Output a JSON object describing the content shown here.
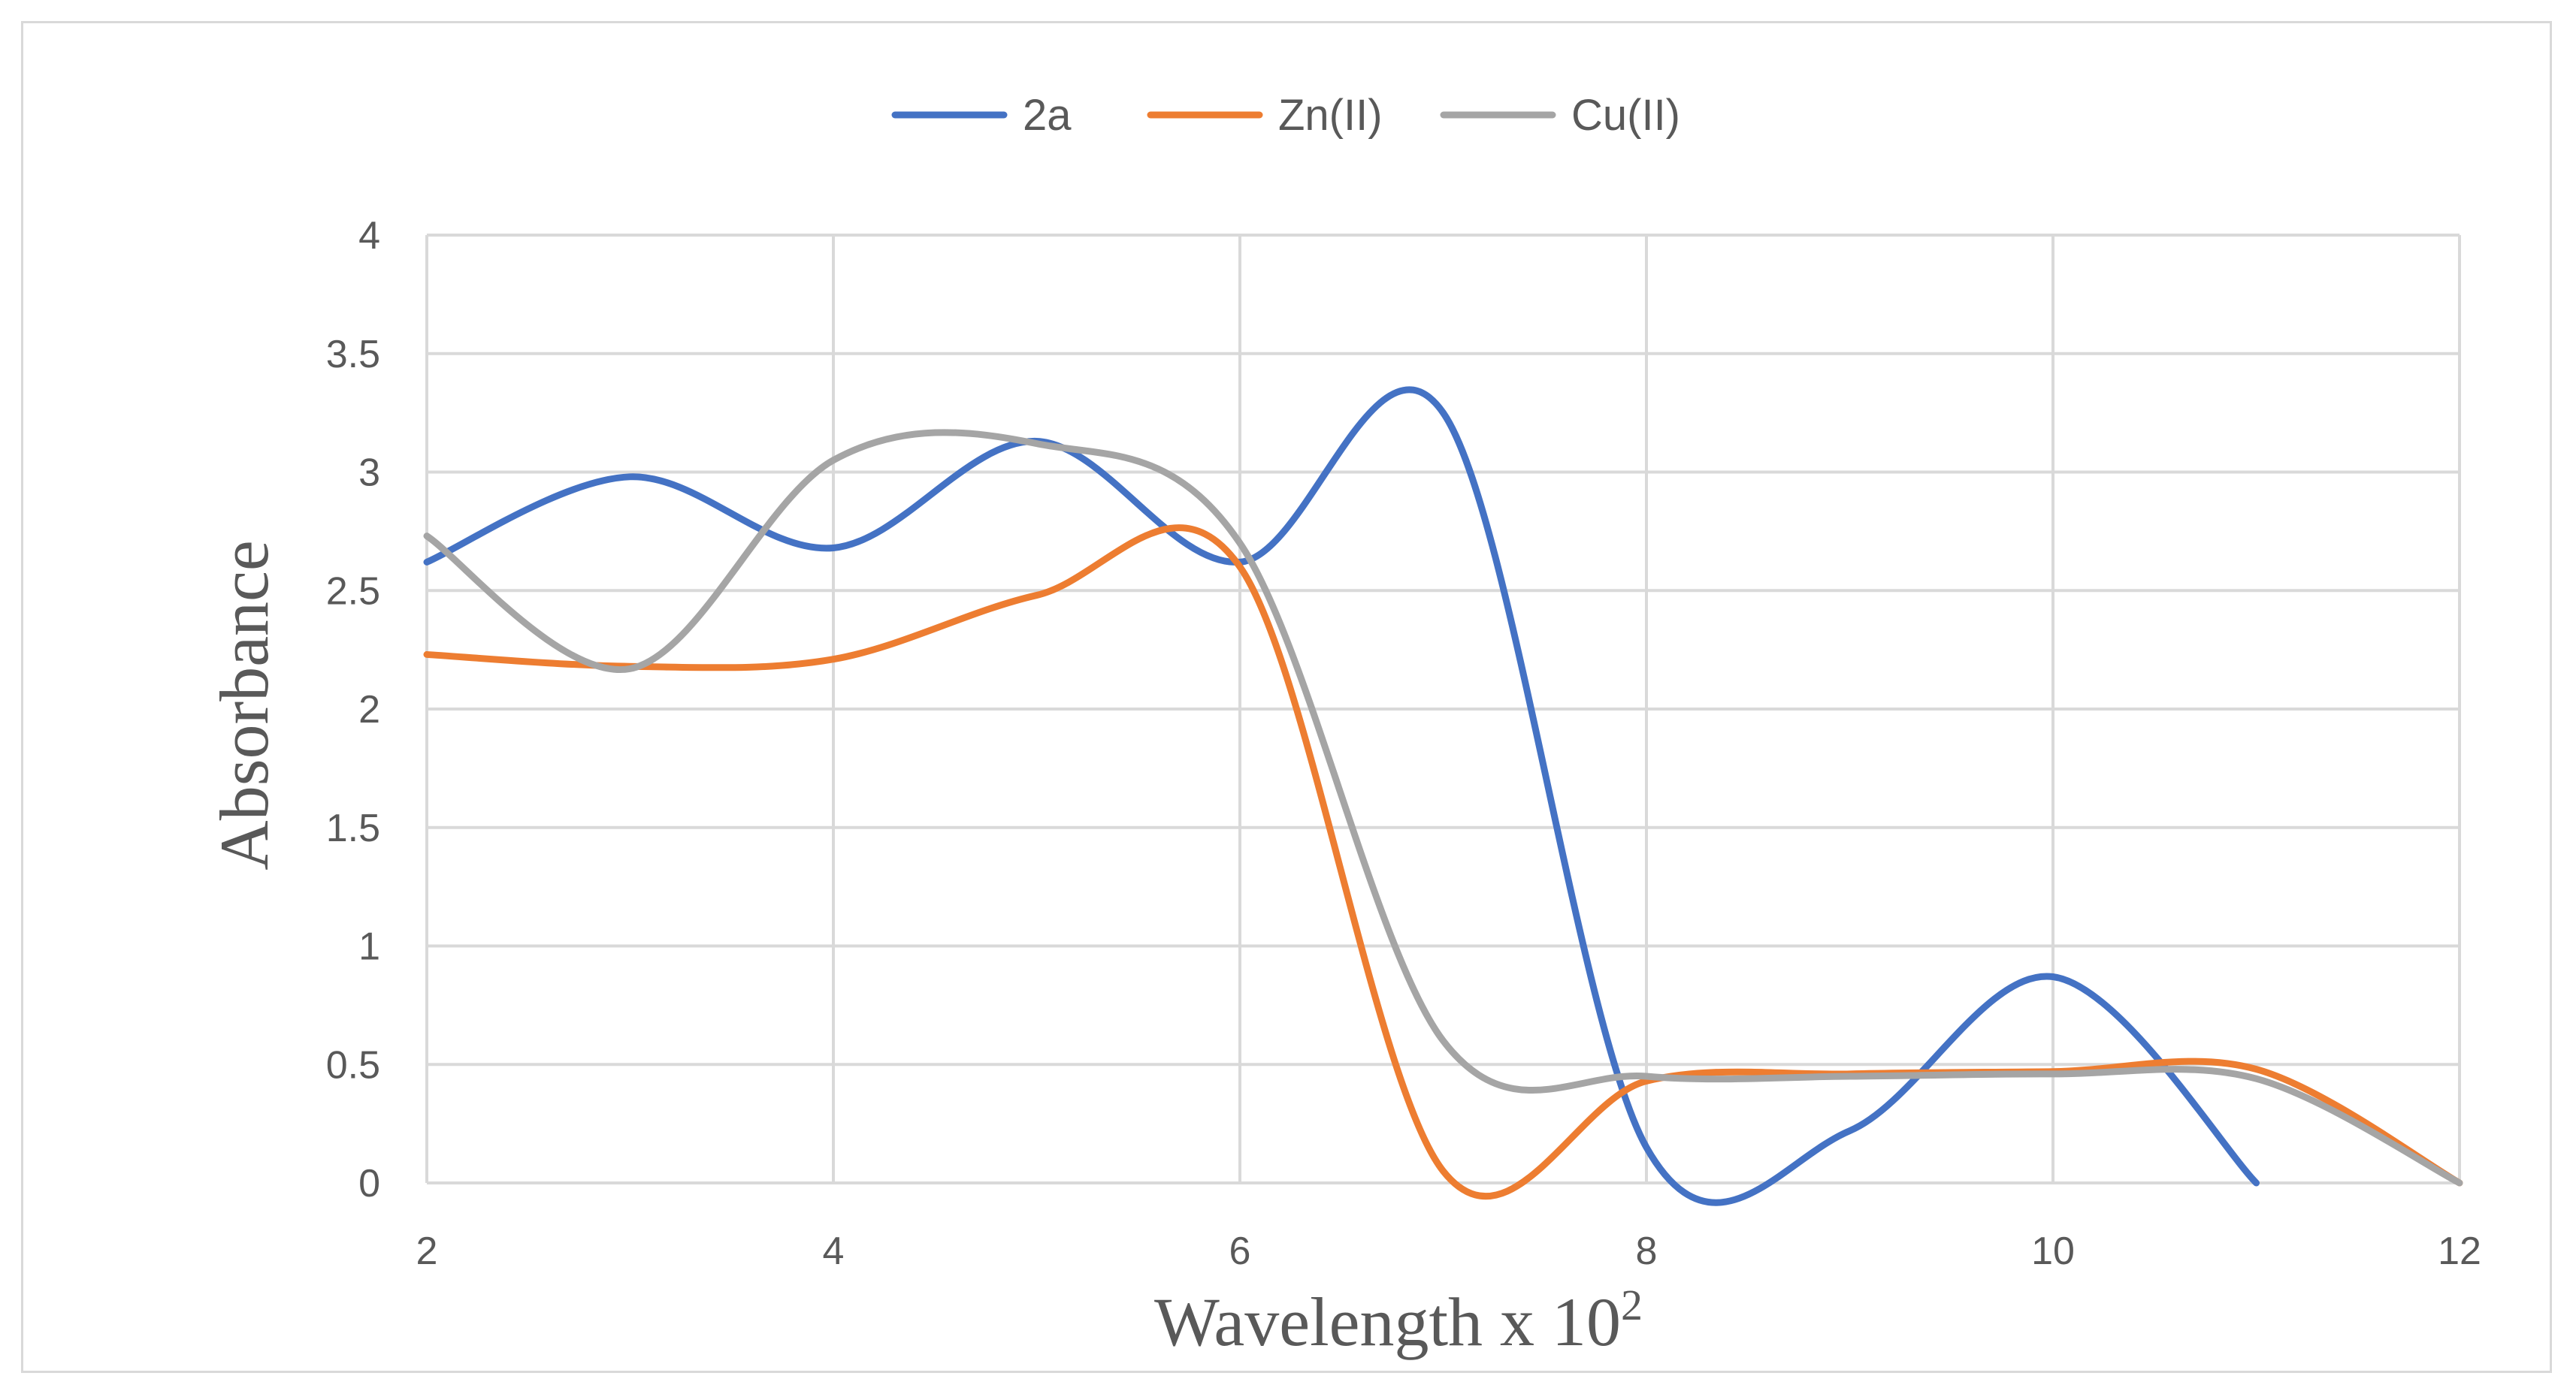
{
  "chart_data": {
    "type": "line",
    "title": "",
    "xlabel": "Wavelength x 10",
    "xlabel_superscript": "2",
    "ylabel": "Absorbance",
    "xlim": [
      2,
      12
    ],
    "ylim": [
      0,
      4
    ],
    "x_ticks": [
      2,
      4,
      6,
      8,
      10,
      12
    ],
    "x_tick_labels": [
      "2",
      "4",
      "6",
      "8",
      "10",
      "12"
    ],
    "y_ticks": [
      0,
      0.5,
      1,
      1.5,
      2,
      2.5,
      3,
      3.5,
      4
    ],
    "y_tick_labels": [
      "0",
      "0.5",
      "1",
      "1.5",
      "2",
      "2.5",
      "3",
      "3.5",
      "4"
    ],
    "grid": true,
    "legend_position": "top-center",
    "smooth": true,
    "series": [
      {
        "name": "2a",
        "color": "#4472c4",
        "x": [
          2,
          3,
          4,
          5,
          6,
          7,
          8,
          9,
          10,
          11
        ],
        "y": [
          2.62,
          2.98,
          2.68,
          3.13,
          2.62,
          3.25,
          0.15,
          0.22,
          0.87,
          0.0
        ]
      },
      {
        "name": "Zn(II)",
        "color": "#ed7d31",
        "x": [
          2,
          3,
          4,
          5,
          6,
          7,
          8,
          9,
          10,
          11,
          12
        ],
        "y": [
          2.23,
          2.18,
          2.21,
          2.48,
          2.6,
          0.05,
          0.43,
          0.46,
          0.47,
          0.48,
          0.0
        ]
      },
      {
        "name": "Cu(II)",
        "color": "#a5a5a5",
        "x": [
          2,
          3,
          4,
          5,
          6,
          7,
          8,
          9,
          10,
          11,
          12
        ],
        "y": [
          2.73,
          2.17,
          3.05,
          3.12,
          2.7,
          0.6,
          0.45,
          0.45,
          0.46,
          0.44,
          0.0
        ]
      }
    ]
  }
}
